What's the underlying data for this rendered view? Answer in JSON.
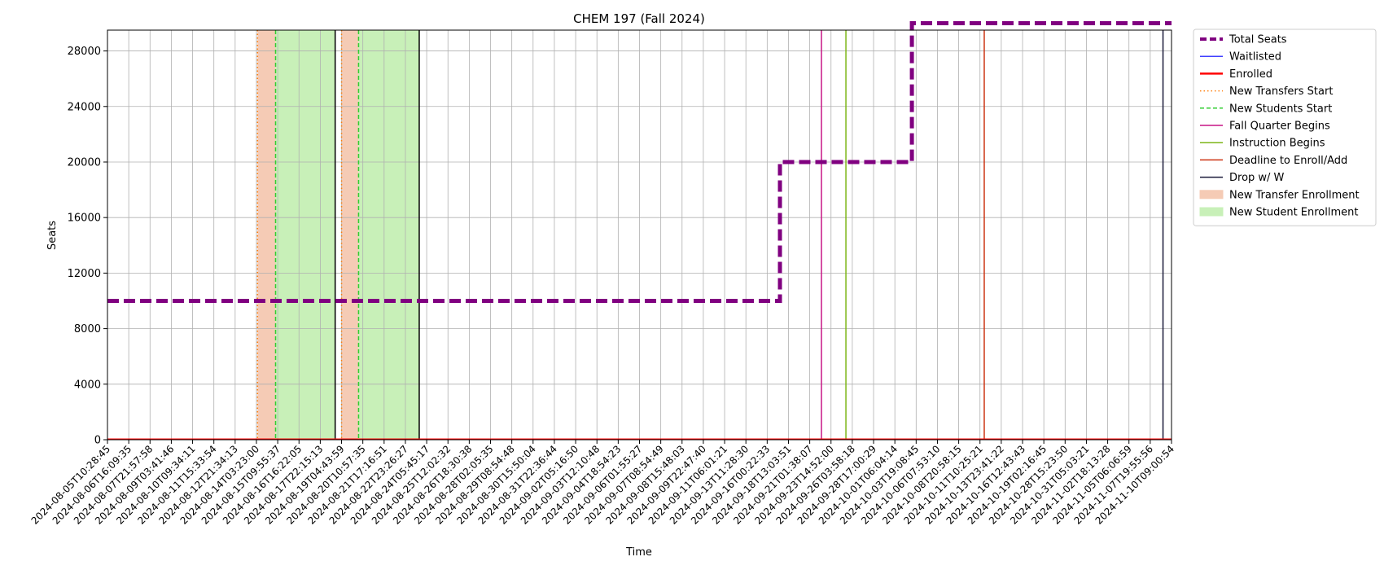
{
  "chart_data": {
    "type": "line",
    "title": "CHEM 197 (Fall 2024)",
    "xlabel": "Time",
    "ylabel": "Seats",
    "ylim": [
      0,
      29500
    ],
    "yticks": [
      0,
      4000,
      8000,
      12000,
      16000,
      20000,
      24000,
      28000
    ],
    "grid": true,
    "legend_position": "outside-right",
    "x_ticks": [
      "2024-08-05T10:28:45",
      "2024-08-06T16:09:35",
      "2024-08-07T21:57:58",
      "2024-08-09T03:41:46",
      "2024-08-10T09:34:11",
      "2024-08-11T15:33:54",
      "2024-08-12T21:34:13",
      "2024-08-14T03:23:00",
      "2024-08-15T09:55:37",
      "2024-08-16T16:22:05",
      "2024-08-17T22:15:13",
      "2024-08-19T04:43:59",
      "2024-08-20T10:57:35",
      "2024-08-21T17:16:51",
      "2024-08-22T23:26:27",
      "2024-08-24T05:45:17",
      "2024-08-25T12:02:32",
      "2024-08-26T18:30:38",
      "2024-08-28T02:05:35",
      "2024-08-29T08:54:48",
      "2024-08-30T15:50:04",
      "2024-08-31T22:36:44",
      "2024-09-02T05:16:50",
      "2024-09-03T12:10:48",
      "2024-09-04T18:54:23",
      "2024-09-06T01:55:27",
      "2024-09-07T08:54:49",
      "2024-09-08T15:48:03",
      "2024-09-09T22:47:40",
      "2024-09-11T06:01:21",
      "2024-09-13T11:28:30",
      "2024-09-16T00:22:33",
      "2024-09-18T13:03:51",
      "2024-09-21T01:38:07",
      "2024-09-23T14:52:00",
      "2024-09-26T03:58:18",
      "2024-09-28T17:00:29",
      "2024-10-01T06:04:14",
      "2024-10-03T19:08:45",
      "2024-10-06T07:53:10",
      "2024-10-08T20:58:15",
      "2024-10-11T10:25:21",
      "2024-10-13T23:41:22",
      "2024-10-16T12:43:43",
      "2024-10-19T02:16:45",
      "2024-10-28T15:23:50",
      "2024-10-31T05:03:21",
      "2024-11-02T18:13:28",
      "2024-11-05T06:06:59",
      "2024-11-07T19:55:56",
      "2024-11-10T09:00:54"
    ],
    "series": [
      {
        "name": "Total Seats",
        "color": "#800080",
        "style": "dashed-thick",
        "steps": [
          {
            "x_index": 0,
            "y": 10000
          },
          {
            "x_index": 31.6,
            "y": 20000
          },
          {
            "x_index": 37.8,
            "y": 30000
          },
          {
            "x_index": 50,
            "y": 30000
          }
        ]
      },
      {
        "name": "Waitlisted",
        "color": "#0000ff",
        "style": "solid",
        "values_constant": 0
      },
      {
        "name": "Enrolled",
        "color": "#ff0000",
        "style": "solid-thick",
        "values_constant": 0
      }
    ],
    "vertical_markers": [
      {
        "name": "New Transfers Start",
        "color": "#ff7f0e",
        "style": "dotted",
        "x_index": [
          7.05,
          11.0
        ]
      },
      {
        "name": "New Students Start",
        "color": "#32cd32",
        "style": "dashed",
        "x_index": [
          7.9,
          11.8
        ]
      },
      {
        "name": "Fall Quarter Begins",
        "color": "#c71585",
        "style": "solid",
        "x_index": [
          33.55
        ]
      },
      {
        "name": "Instruction Begins",
        "color": "#7cb518",
        "style": "solid",
        "x_index": [
          34.7
        ]
      },
      {
        "name": "Deadline to Enroll/Add",
        "color": "#cc3311",
        "style": "solid",
        "x_index": [
          41.2
        ]
      },
      {
        "name": "Drop w/ W",
        "color": "#1a1a3a",
        "style": "solid",
        "x_index": [
          49.6
        ]
      }
    ],
    "black_markers_x_index": [
      10.7,
      14.65
    ],
    "shaded_regions": [
      {
        "name": "New Transfer Enrollment",
        "color": "#f5cbb5",
        "ranges": [
          [
            7.05,
            7.9
          ],
          [
            11.0,
            11.8
          ]
        ]
      },
      {
        "name": "New Student Enrollment",
        "color": "#c8f0b8",
        "ranges": [
          [
            7.9,
            10.7
          ],
          [
            11.8,
            14.65
          ]
        ]
      }
    ],
    "legend": [
      {
        "label": "Total Seats",
        "kind": "line",
        "color": "#800080",
        "dash": "8,4",
        "width": 4
      },
      {
        "label": "Waitlisted",
        "kind": "line",
        "color": "#0000ff",
        "dash": "",
        "width": 1.2
      },
      {
        "label": "Enrolled",
        "kind": "line",
        "color": "#ff0000",
        "dash": "",
        "width": 2.5
      },
      {
        "label": "New Transfers Start",
        "kind": "line",
        "color": "#ff7f0e",
        "dash": "1.5,3",
        "width": 1.5
      },
      {
        "label": "New Students Start",
        "kind": "line",
        "color": "#32cd32",
        "dash": "5,3",
        "width": 1.5
      },
      {
        "label": "Fall Quarter Begins",
        "kind": "line",
        "color": "#c71585",
        "dash": "",
        "width": 1.5
      },
      {
        "label": "Instruction Begins",
        "kind": "line",
        "color": "#7cb518",
        "dash": "",
        "width": 1.5
      },
      {
        "label": "Deadline to Enroll/Add",
        "kind": "line",
        "color": "#cc3311",
        "dash": "",
        "width": 1.5
      },
      {
        "label": "Drop w/ W",
        "kind": "line",
        "color": "#1a1a3a",
        "dash": "",
        "width": 1.5
      },
      {
        "label": "New Transfer Enrollment",
        "kind": "patch",
        "color": "#f5cbb5"
      },
      {
        "label": "New Student Enrollment",
        "kind": "patch",
        "color": "#c8f0b8"
      }
    ]
  }
}
